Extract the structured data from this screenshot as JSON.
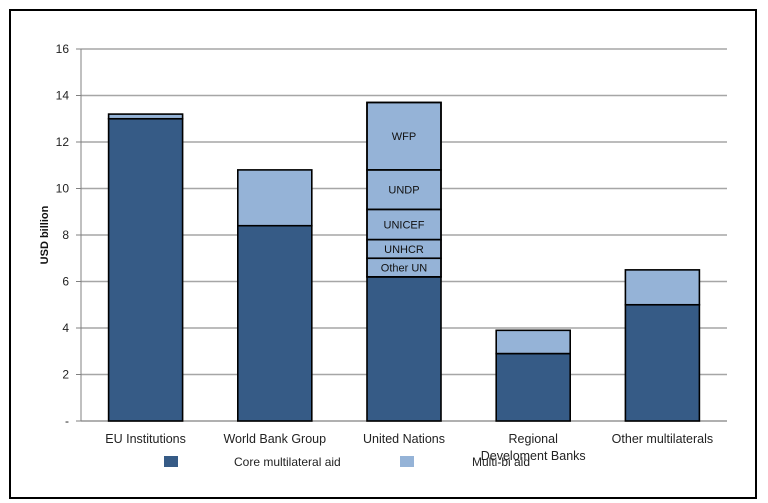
{
  "chart_data": {
    "type": "bar",
    "stacked": true,
    "categories": [
      "EU Institutions",
      "World Bank Group",
      "United Nations",
      "Regional Develoment Banks",
      "Other multilaterals"
    ],
    "category_lines": [
      [
        "EU Institutions"
      ],
      [
        "World Bank Group"
      ],
      [
        "United Nations"
      ],
      [
        "Regional",
        "Develoment Banks"
      ],
      [
        "Other multilaterals"
      ]
    ],
    "series": [
      {
        "name": "Core multilateral aid",
        "color": "#365B86",
        "values": [
          13.0,
          8.4,
          6.2,
          2.9,
          5.0
        ]
      },
      {
        "name": "Multi-bi aid",
        "color": "#95B3D7",
        "values": [
          0.2,
          2.4,
          7.5,
          1.0,
          1.5
        ]
      }
    ],
    "un_breakdown": [
      {
        "label": "Other UN",
        "from": 6.2,
        "to": 7.0
      },
      {
        "label": "UNHCR",
        "from": 7.0,
        "to": 7.8
      },
      {
        "label": "UNICEF",
        "from": 7.8,
        "to": 9.1
      },
      {
        "label": "UNDP",
        "from": 9.1,
        "to": 10.8
      },
      {
        "label": "WFP",
        "from": 10.8,
        "to": 13.7
      }
    ],
    "ylabel": "USD billion",
    "ylim": [
      0,
      16
    ],
    "yticks": [
      0,
      2,
      4,
      6,
      8,
      10,
      12,
      14,
      16
    ],
    "ytick_labels": [
      "-",
      "2",
      "4",
      "6",
      "8",
      "10",
      "12",
      "14",
      "16"
    ],
    "grid": true,
    "legend": "bottom"
  }
}
